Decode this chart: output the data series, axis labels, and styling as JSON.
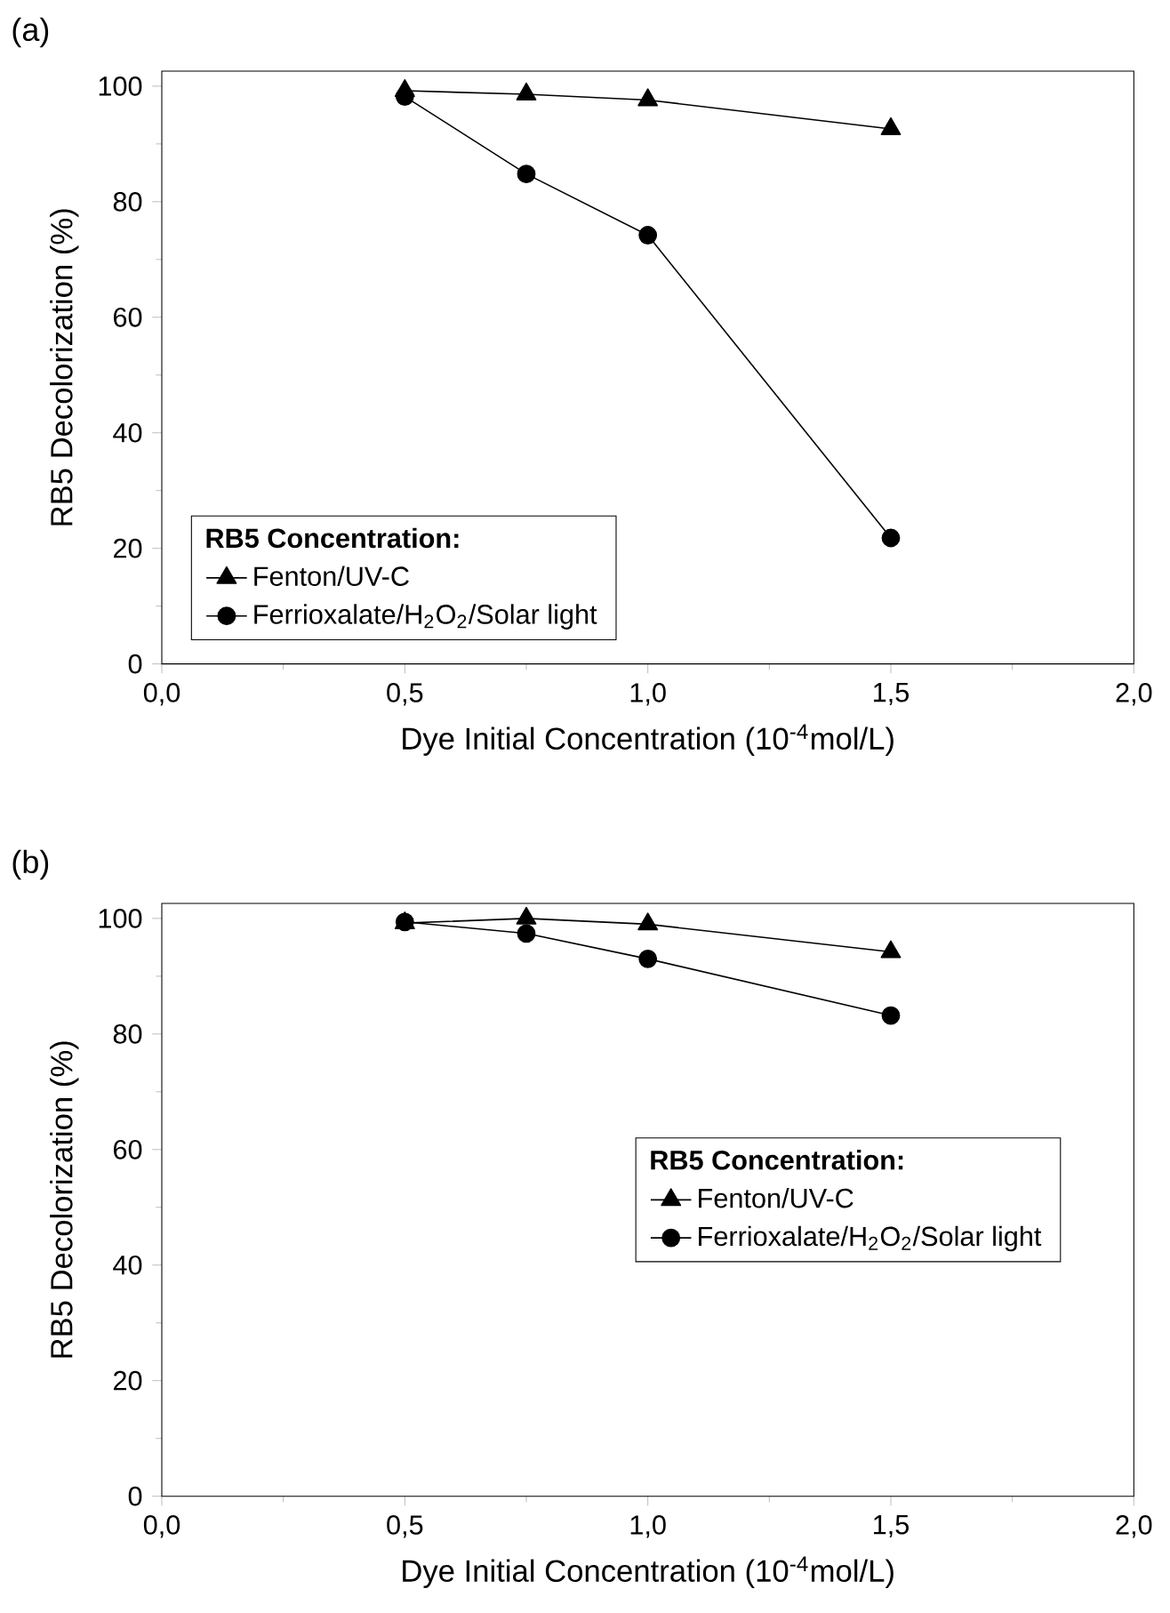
{
  "chart_data": [
    {
      "type": "line",
      "title": "(a)",
      "xlabel": "Dye Initial Concentration (10$^{-4}$mol/L)",
      "ylabel": "RB5 Decolorization (%)",
      "legend_title": "RB5 Concentration:",
      "legend": "bottom left",
      "x": [
        0.5,
        0.75,
        1.0,
        1.5
      ],
      "series": [
        {
          "name": "Fenton/UV-C",
          "color": "#000000",
          "marker": "triangle",
          "values": [
            99.2,
            98.6,
            97.6,
            92.6
          ]
        },
        {
          "name": "Ferrioxalate/H$_{2}$O$_{2}$/Solar light",
          "color": "#000000",
          "marker": "circle",
          "values": [
            98.2,
            84.8,
            74.2,
            21.8
          ]
        }
      ],
      "xlim": [
        0,
        2
      ],
      "ylim": [
        0,
        102.6
      ],
      "xticks": [
        {
          "value": 0,
          "label": "0,0"
        },
        {
          "value": 0.5,
          "label": "0,5"
        },
        {
          "value": 1.0,
          "label": "1,0"
        },
        {
          "value": 1.5,
          "label": "1,5"
        },
        {
          "value": 2.0,
          "label": "2,0"
        }
      ],
      "yticks": [
        0,
        20,
        40,
        60,
        80,
        100
      ]
    },
    {
      "type": "line",
      "title": "(b)",
      "xlabel": "Dye Initial Concentration (10$^{-4}$mol/L)",
      "ylabel": "RB5 Decolorization (%)",
      "legend_title": "RB5 Concentration:",
      "legend": "right",
      "x": [
        0.5,
        0.75,
        1.0,
        1.5
      ],
      "series": [
        {
          "name": "Fenton/UV-C",
          "color": "#000000",
          "marker": "triangle",
          "values": [
            99.2,
            100,
            99.0,
            94.2
          ]
        },
        {
          "name": "Ferrioxalate/H$_{2}$O$_{2}$/Solar light",
          "color": "#000000",
          "marker": "circle",
          "values": [
            99.4,
            97.4,
            93.0,
            83.2
          ]
        }
      ],
      "xlim": [
        0,
        2
      ],
      "ylim": [
        0,
        102.6
      ],
      "xticks": [
        {
          "value": 0,
          "label": "0,0"
        },
        {
          "value": 0.5,
          "label": "0,5"
        },
        {
          "value": 1.0,
          "label": "1,0"
        },
        {
          "value": 1.5,
          "label": "1,5"
        },
        {
          "value": 2.0,
          "label": "2,0"
        }
      ],
      "yticks": [
        0,
        20,
        40,
        60,
        80,
        100
      ]
    }
  ]
}
